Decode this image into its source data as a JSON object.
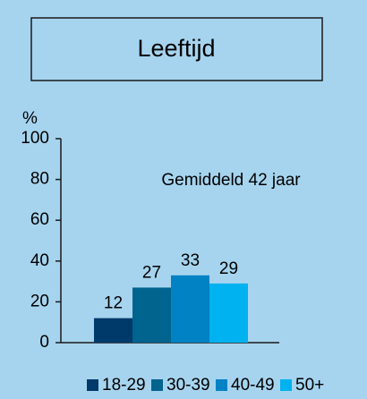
{
  "chart_data": {
    "type": "bar",
    "title": "Leeftijd",
    "y_label": "%",
    "annotation": "Gemiddeld 42 jaar",
    "categories": [
      null
    ],
    "series": [
      {
        "name": "18-29",
        "color": "#003a6b",
        "values": [
          12
        ]
      },
      {
        "name": "30-39",
        "color": "#00648f",
        "values": [
          27
        ]
      },
      {
        "name": "40-49",
        "color": "#0082c4",
        "values": [
          33
        ]
      },
      {
        "name": "50+",
        "color": "#00b2ef",
        "values": [
          29
        ]
      }
    ],
    "ylim": [
      0,
      100
    ],
    "yticks": [
      0,
      20,
      40,
      60,
      80,
      100
    ],
    "grid": false
  }
}
